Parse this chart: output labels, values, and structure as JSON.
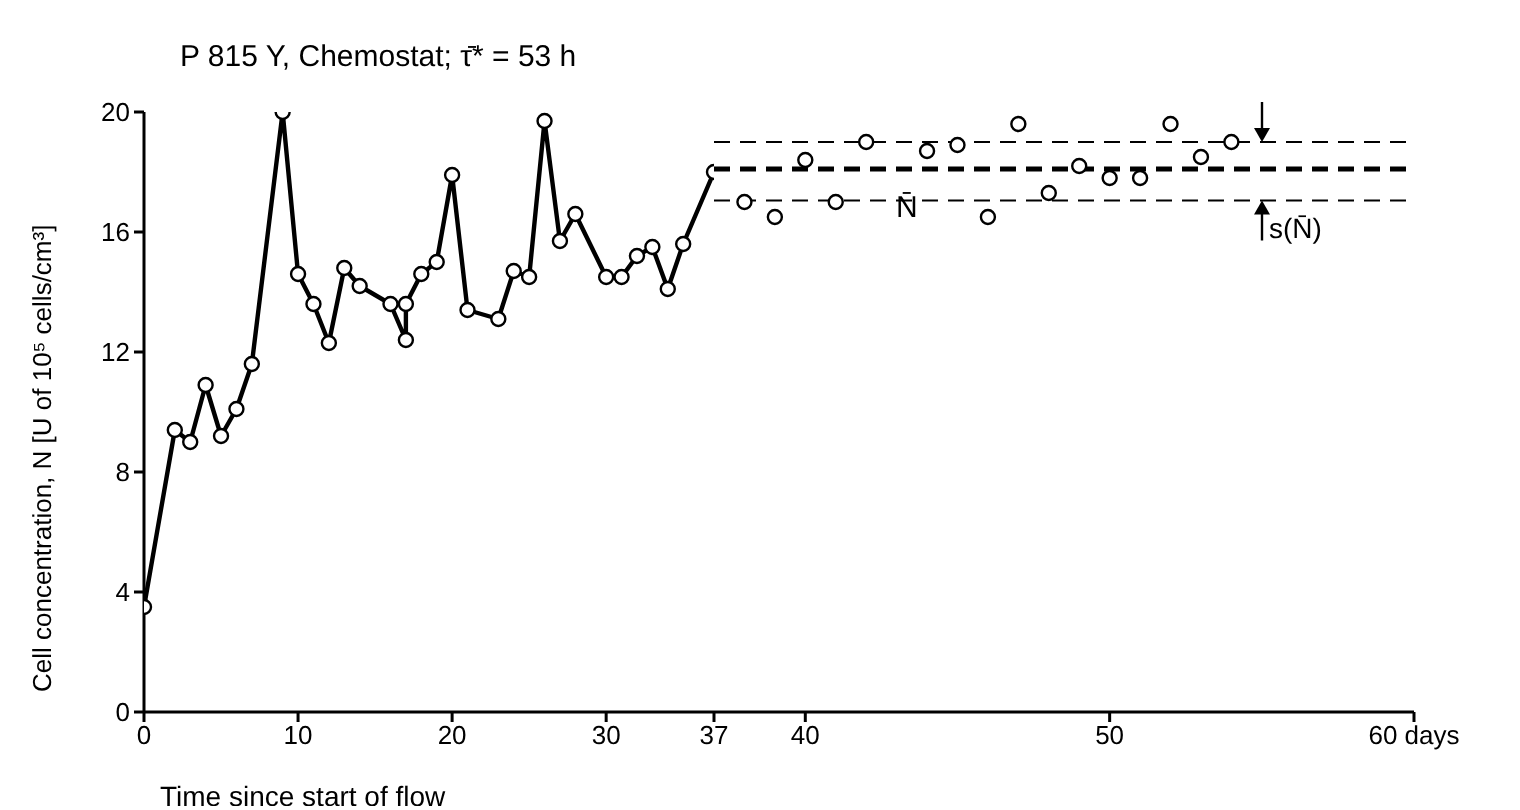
{
  "chart_data": [
    {
      "type": "line",
      "title": "P 815 Y, Chemostat; τ̄* = 53 h",
      "xlabel": "Time since start of flow",
      "ylabel": "Cell concentration, N [U of 10⁵ cells/cm³]",
      "xlim": [
        0,
        37
      ],
      "xticks": [
        0,
        10,
        20,
        30,
        37
      ],
      "ylim": [
        0,
        20
      ],
      "yticks": [
        0,
        4,
        8,
        12,
        16,
        20
      ],
      "grid": false,
      "legend": false,
      "marker": "circle",
      "line_style": "solid",
      "series": [
        {
          "color": "#000000",
          "x": [
            0,
            2,
            3,
            4,
            5,
            6,
            7,
            9,
            10,
            11,
            12,
            13,
            14,
            16,
            17,
            17,
            18,
            19,
            20,
            21,
            23,
            24,
            25,
            26,
            27,
            28,
            30,
            31,
            32,
            33,
            34,
            35,
            37
          ],
          "values": [
            3.5,
            9.4,
            9.0,
            10.9,
            9.2,
            10.1,
            11.6,
            20.0,
            14.6,
            13.6,
            12.3,
            14.8,
            14.2,
            13.6,
            12.4,
            13.6,
            14.6,
            15.0,
            17.9,
            13.4,
            13.1,
            14.7,
            14.5,
            19.7,
            15.7,
            16.6,
            14.5,
            14.5,
            15.2,
            15.5,
            14.1,
            15.6,
            18.0
          ]
        }
      ]
    },
    {
      "type": "scatter",
      "xlim": [
        37,
        60
      ],
      "xticks": [
        40,
        50,
        {
          "value": 60,
          "label": "60 days"
        }
      ],
      "ylim": [
        0,
        20
      ],
      "tick_labels": "x",
      "grid": false,
      "legend": false,
      "marker": "circle",
      "series": [
        {
          "color": "#000000",
          "x": [
            38,
            39,
            40,
            41,
            42,
            44,
            45,
            46,
            47,
            48,
            49,
            50,
            51,
            52,
            53,
            54
          ],
          "values": [
            17.0,
            16.5,
            18.4,
            17.0,
            19.0,
            18.7,
            18.9,
            16.5,
            19.6,
            17.3,
            18.2,
            17.8,
            17.8,
            19.6,
            18.5,
            19.0
          ]
        }
      ],
      "ref_lines": [
        {
          "axis": "y",
          "value": 19.0,
          "color": "#000000",
          "line_style": "dashed"
        },
        {
          "axis": "y",
          "value": 18.1,
          "label": "N̄",
          "color": "#000000",
          "line_style": "dashed"
        },
        {
          "axis": "y",
          "value": 17.05,
          "color": "#000000",
          "line_style": "dashed"
        }
      ],
      "annotations": [
        {
          "text": "s(N̄)",
          "x": 55.5,
          "y": 17.05
        }
      ]
    }
  ]
}
